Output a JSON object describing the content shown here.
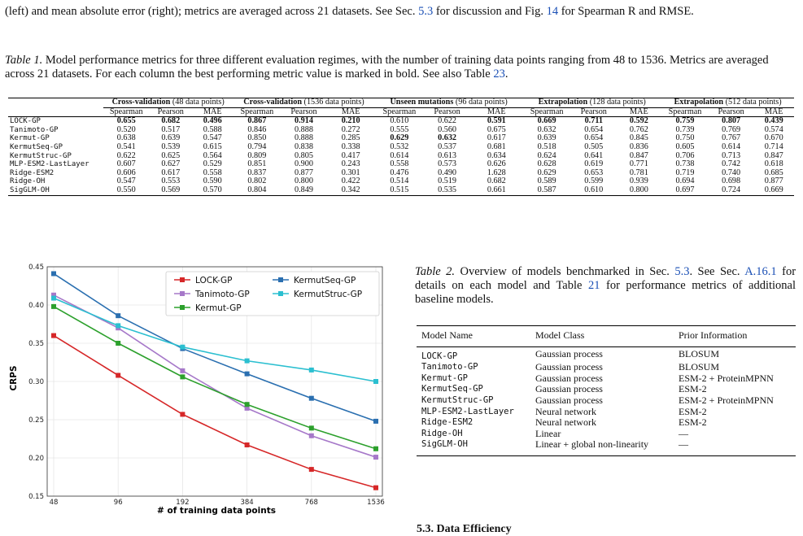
{
  "caption_top": {
    "pre": "(left) and mean absolute error (right); metrics are averaged across 21 datasets. See Sec.",
    "ref1": "5.3",
    "mid": "for discussion and Fig.",
    "ref2": "14",
    "post": "for Spearman R and RMSE."
  },
  "table1": {
    "label": "Table 1.",
    "caption": "Model performance metrics for three different evaluation regimes, with the number of training data points ranging from 48 to 1536. Metrics are averaged across 21 datasets. For each column the best performing metric value is marked in bold. See also Table",
    "ref": "23",
    "groups": [
      {
        "bold": "Cross-validation",
        "rest": "(48 data points)"
      },
      {
        "bold": "Cross-validation",
        "rest": "(1536 data points)"
      },
      {
        "bold": "Unseen mutations",
        "rest": "(96 data points)"
      },
      {
        "bold": "Extrapolation",
        "rest": "(128 data points)"
      },
      {
        "bold": "Extrapolation",
        "rest": "(512 data points)"
      }
    ],
    "subcols": [
      "Spearman",
      "Pearson",
      "MAE"
    ],
    "rows": [
      {
        "model": "LOCK-GP",
        "values": [
          "0.655",
          "0.682",
          "0.496",
          "0.867",
          "0.914",
          "0.210",
          "0.610",
          "0.622",
          "0.591",
          "0.669",
          "0.711",
          "0.592",
          "0.759",
          "0.807",
          "0.439"
        ],
        "bold": [
          0,
          1,
          2,
          3,
          4,
          5,
          8,
          9,
          10,
          11,
          12,
          13,
          14
        ]
      },
      {
        "model": "Tanimoto-GP",
        "values": [
          "0.520",
          "0.517",
          "0.588",
          "0.846",
          "0.888",
          "0.272",
          "0.555",
          "0.560",
          "0.675",
          "0.632",
          "0.654",
          "0.762",
          "0.739",
          "0.769",
          "0.574"
        ],
        "bold": []
      },
      {
        "model": "Kermut-GP",
        "values": [
          "0.638",
          "0.639",
          "0.547",
          "0.850",
          "0.888",
          "0.285",
          "0.629",
          "0.632",
          "0.617",
          "0.639",
          "0.654",
          "0.845",
          "0.750",
          "0.767",
          "0.670"
        ],
        "bold": [
          6,
          7
        ]
      },
      {
        "model": "KermutSeq-GP",
        "values": [
          "0.541",
          "0.539",
          "0.615",
          "0.794",
          "0.838",
          "0.338",
          "0.532",
          "0.537",
          "0.681",
          "0.518",
          "0.505",
          "0.836",
          "0.605",
          "0.614",
          "0.714"
        ],
        "bold": []
      },
      {
        "model": "KermutStruc-GP",
        "values": [
          "0.622",
          "0.625",
          "0.564",
          "0.809",
          "0.805",
          "0.417",
          "0.614",
          "0.613",
          "0.634",
          "0.624",
          "0.641",
          "0.847",
          "0.706",
          "0.713",
          "0.847"
        ],
        "bold": []
      },
      {
        "model": "MLP-ESM2-LastLayer",
        "values": [
          "0.607",
          "0.627",
          "0.529",
          "0.851",
          "0.900",
          "0.243",
          "0.558",
          "0.573",
          "0.626",
          "0.628",
          "0.619",
          "0.771",
          "0.738",
          "0.742",
          "0.618"
        ],
        "bold": []
      },
      {
        "model": "Ridge-ESM2",
        "values": [
          "0.606",
          "0.617",
          "0.558",
          "0.837",
          "0.877",
          "0.301",
          "0.476",
          "0.490",
          "1.628",
          "0.629",
          "0.653",
          "0.781",
          "0.719",
          "0.740",
          "0.685"
        ],
        "bold": []
      },
      {
        "model": "Ridge-OH",
        "values": [
          "0.547",
          "0.553",
          "0.590",
          "0.802",
          "0.800",
          "0.422",
          "0.514",
          "0.519",
          "0.682",
          "0.589",
          "0.599",
          "0.939",
          "0.694",
          "0.698",
          "0.877"
        ],
        "bold": []
      },
      {
        "model": "SigGLM-OH",
        "values": [
          "0.550",
          "0.569",
          "0.570",
          "0.804",
          "0.849",
          "0.342",
          "0.515",
          "0.535",
          "0.661",
          "0.587",
          "0.610",
          "0.800",
          "0.697",
          "0.724",
          "0.669"
        ],
        "bold": []
      }
    ]
  },
  "table2": {
    "label": "Table 2.",
    "caption_a": "Overview of models benchmarked in Sec.",
    "ref1": "5.3",
    "caption_b": ". See Sec.",
    "ref2": "A.16.1",
    "caption_c": "for details on each model and Table",
    "ref3": "21",
    "caption_d": "for performance metrics of additional baseline models.",
    "headers": [
      "Model Name",
      "Model Class",
      "Prior Information"
    ],
    "rows": [
      [
        "LOCK-GP",
        "Gaussian process",
        "BLOSUM"
      ],
      [
        "Tanimoto-GP",
        "Gaussian process",
        "BLOSUM"
      ],
      [
        "Kermut-GP",
        "Gaussian process",
        "ESM-2 + ProteinMPNN"
      ],
      [
        "KermutSeq-GP",
        "Gaussian process",
        "ESM-2"
      ],
      [
        "KermutStruc-GP",
        "Gaussian process",
        "ESM-2 + ProteinMPNN"
      ],
      [
        "MLP-ESM2-LastLayer",
        "Neural network",
        "ESM-2"
      ],
      [
        "Ridge-ESM2",
        "Neural network",
        "ESM-2"
      ],
      [
        "Ridge-OH",
        "Linear",
        "—"
      ],
      [
        "SigGLM-OH",
        "Linear + global non-linearity",
        "—"
      ]
    ]
  },
  "section_heading": "5.3. Data Efficiency",
  "chart_data": {
    "type": "line",
    "x": [
      48,
      96,
      192,
      384,
      768,
      1536
    ],
    "x_tick_labels": [
      "48",
      "96",
      "192",
      "384",
      "768",
      "1536"
    ],
    "x_scale": "log2",
    "xlabel": "# of training data points",
    "ylabel": "CRPS",
    "ylim": [
      0.15,
      0.45
    ],
    "y_ticks": [
      "0.15",
      "0.20",
      "0.25",
      "0.30",
      "0.35",
      "0.40",
      "0.45"
    ],
    "grid": true,
    "legend_position": "top-right",
    "series": [
      {
        "name": "LOCK-GP",
        "color": "#d62728",
        "values": [
          0.36,
          0.308,
          0.257,
          0.217,
          0.185,
          0.161
        ]
      },
      {
        "name": "KermutSeq-GP",
        "color": "#2a6fb0",
        "values": [
          0.441,
          0.386,
          0.343,
          0.31,
          0.278,
          0.248
        ]
      },
      {
        "name": "Tanimoto-GP",
        "color": "#a678c9",
        "values": [
          0.413,
          0.37,
          0.314,
          0.265,
          0.229,
          0.201
        ]
      },
      {
        "name": "KermutStruc-GP",
        "color": "#2bbfd0",
        "values": [
          0.409,
          0.373,
          0.345,
          0.327,
          0.315,
          0.3
        ]
      },
      {
        "name": "Kermut-GP",
        "color": "#2ca02c",
        "values": [
          0.398,
          0.35,
          0.306,
          0.27,
          0.239,
          0.212
        ]
      }
    ]
  }
}
